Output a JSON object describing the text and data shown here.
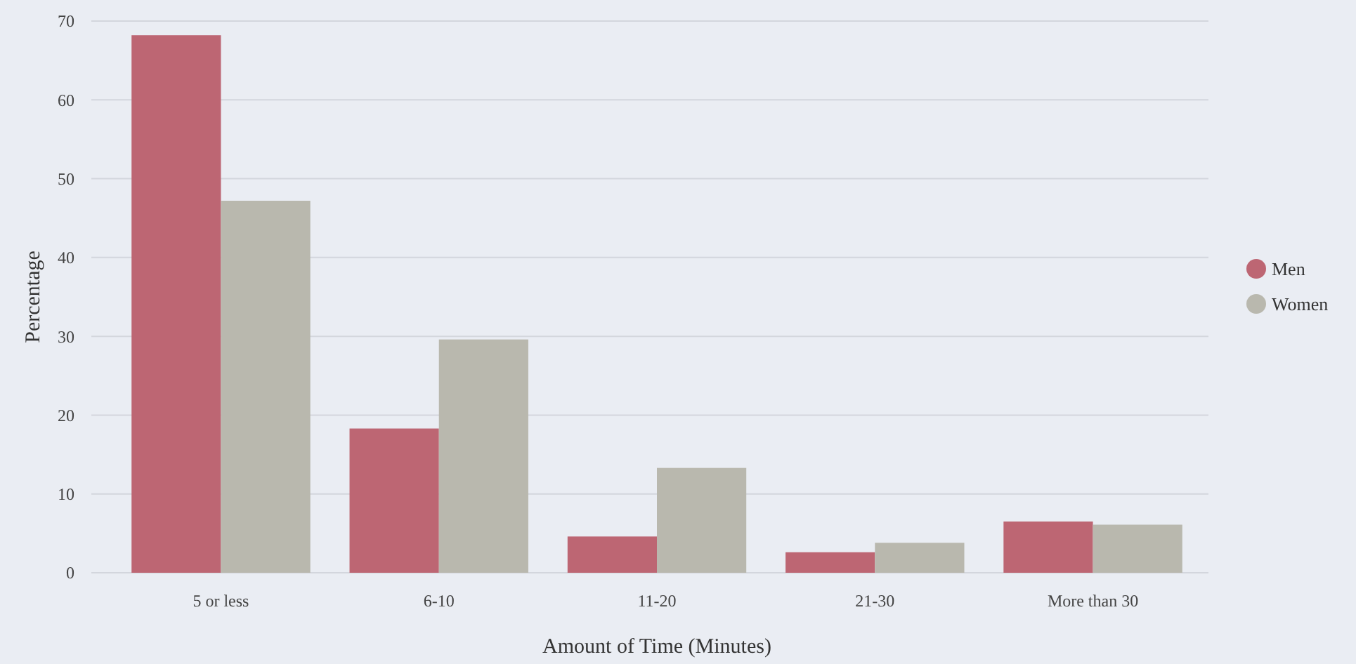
{
  "chart_data": {
    "type": "bar",
    "xlabel": "Amount of Time (Minutes)",
    "ylabel": "Percentage",
    "categories": [
      "5 or less",
      "6-10",
      "11-20",
      "21-30",
      "More than 30"
    ],
    "series": [
      {
        "name": "Men",
        "color": "#bd6673",
        "values": [
          68.2,
          18.3,
          4.6,
          2.6,
          6.5
        ]
      },
      {
        "name": "Women",
        "color": "#b9b8ae",
        "values": [
          47.2,
          29.6,
          13.3,
          3.8,
          6.1
        ]
      }
    ],
    "ylim": [
      0,
      70
    ],
    "yticks": [
      0,
      10,
      20,
      30,
      40,
      50,
      60,
      70
    ],
    "grid": "y",
    "legend": "right"
  }
}
